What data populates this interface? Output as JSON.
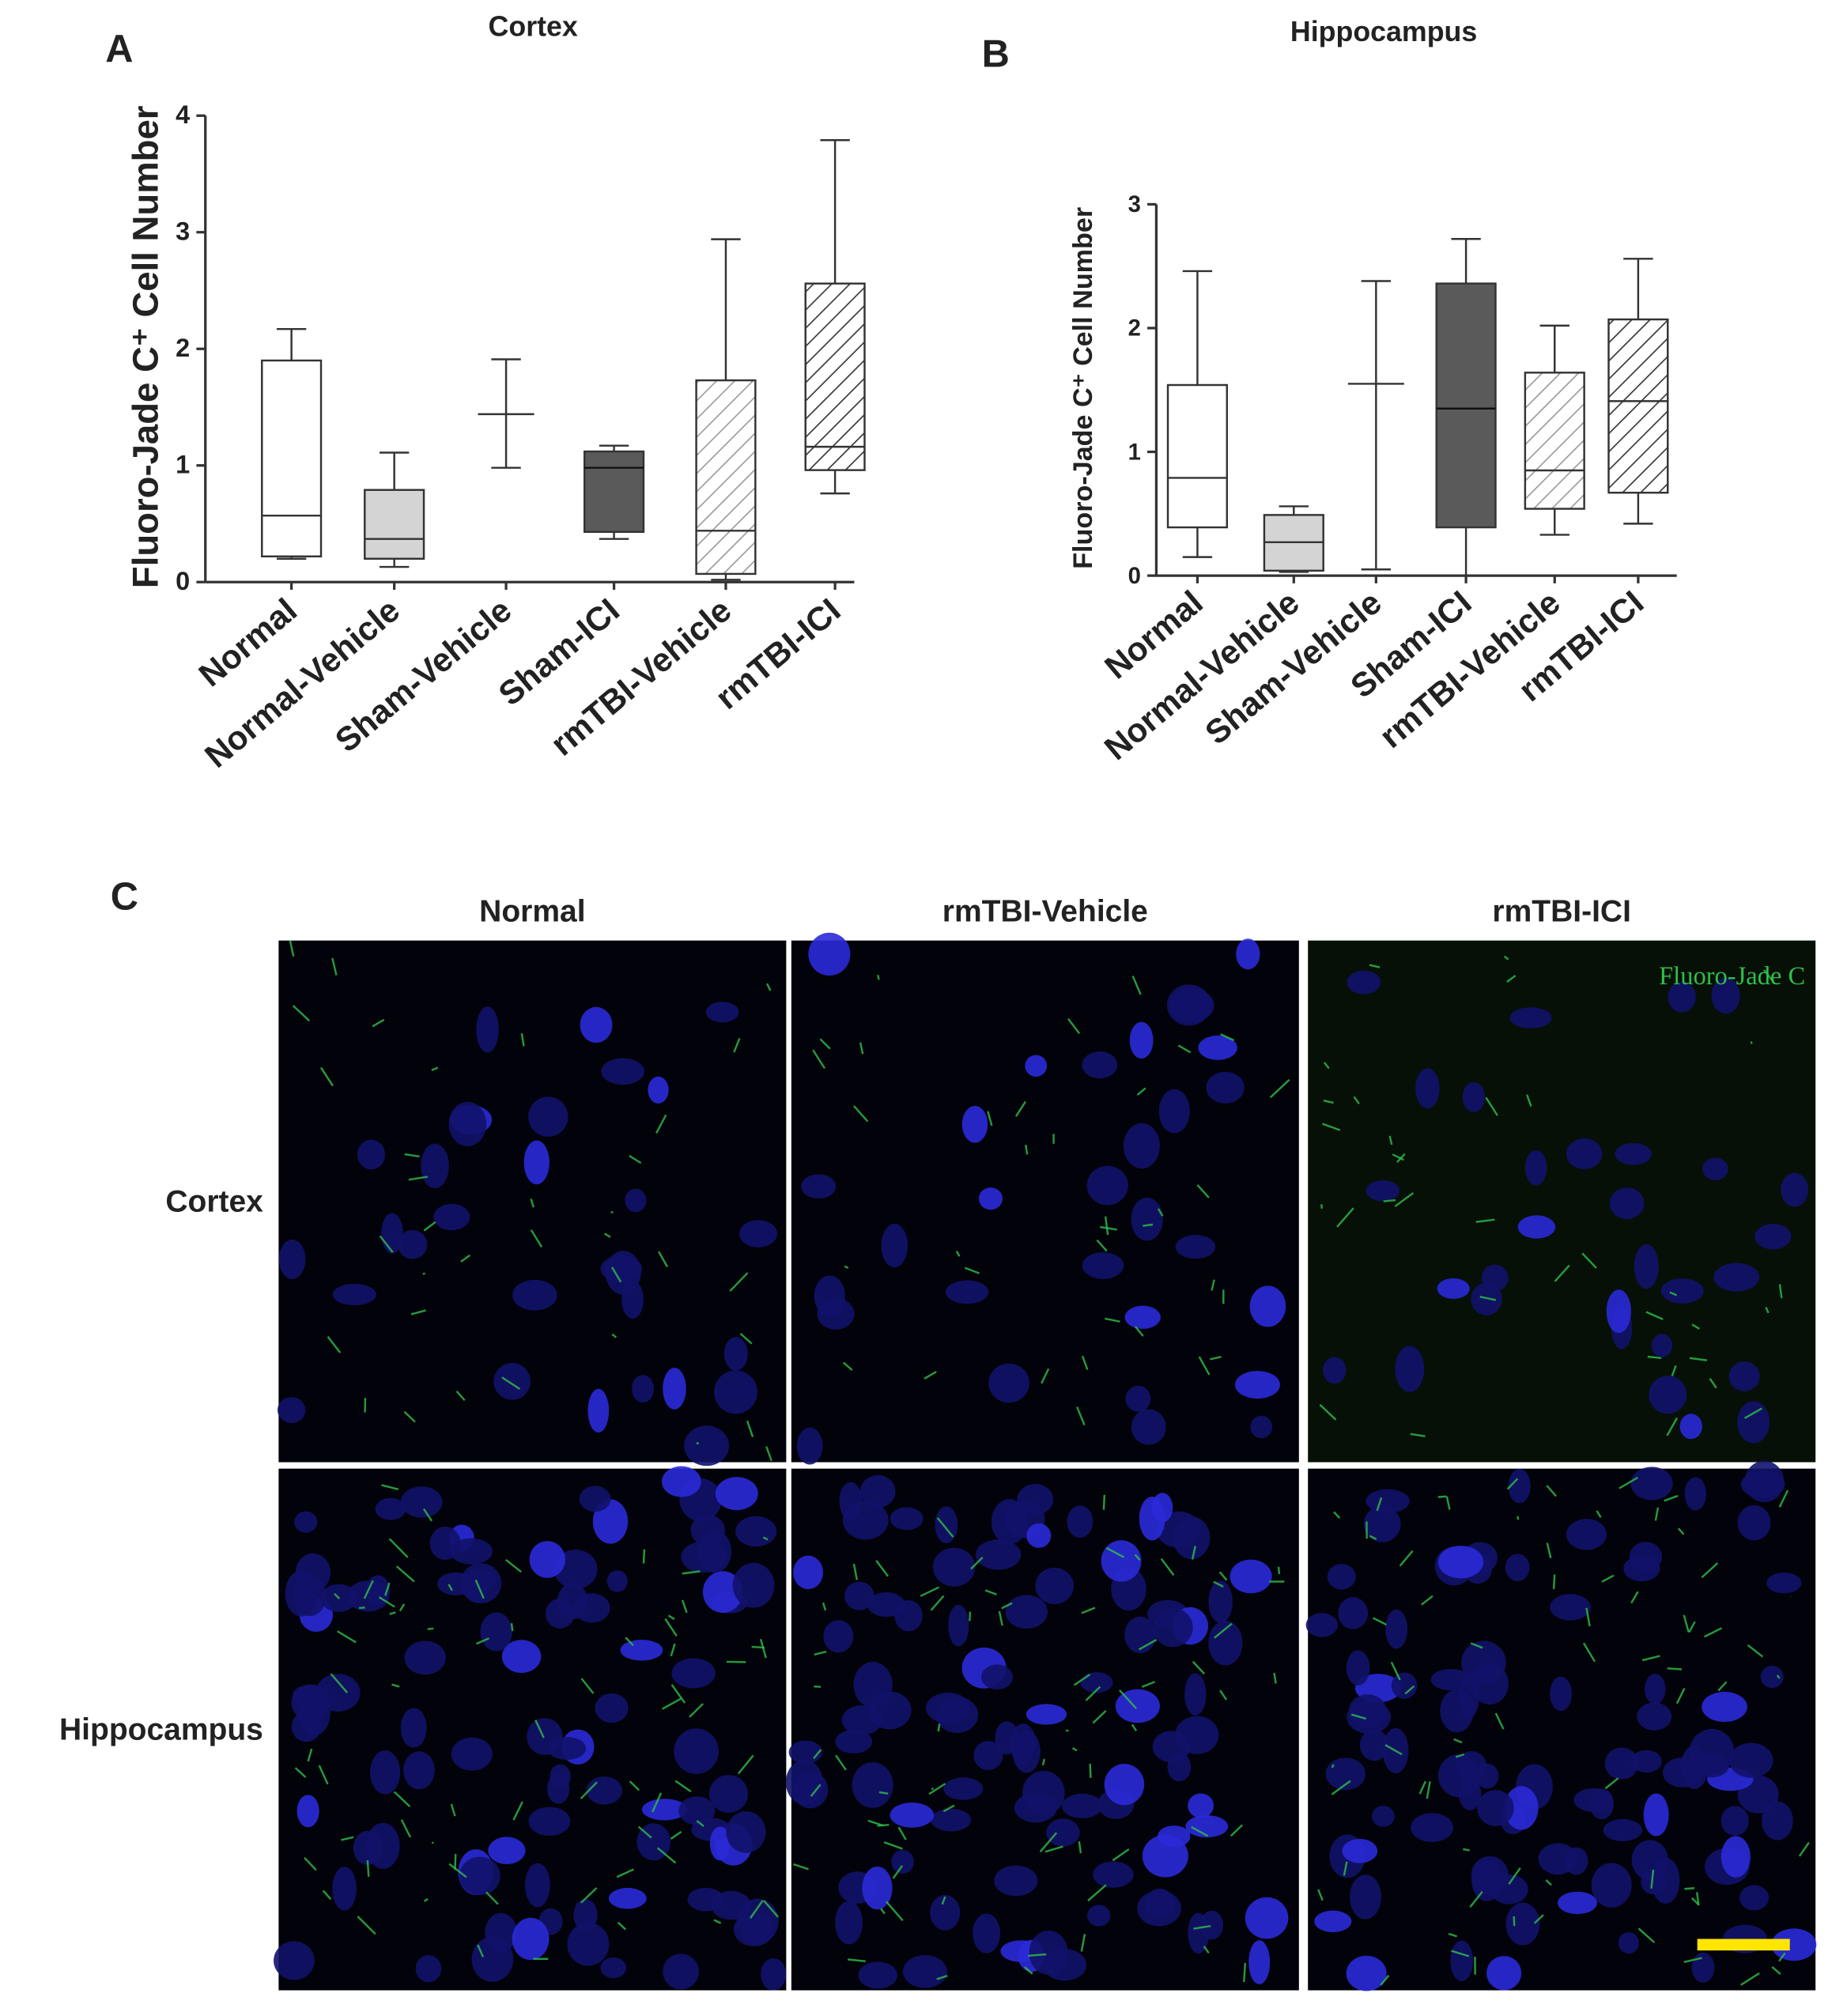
{
  "chart_data": [
    {
      "type": "box",
      "panel": "A",
      "title": "Cortex",
      "ylabel": "Fluoro-Jade C⁺ Cell Number",
      "categories": [
        "Normal",
        "Normal-Vehicle",
        "Sham-Vehicle",
        "Sham-ICI",
        "rmTBI-Vehicle",
        "rmTBI-ICI"
      ],
      "min": [
        0.2,
        0.13,
        0.98,
        0.37,
        0.02,
        0.76
      ],
      "q1": [
        0.22,
        0.2,
        null,
        0.43,
        0.07,
        0.96
      ],
      "median": [
        0.57,
        0.37,
        1.44,
        0.98,
        0.44,
        1.16
      ],
      "q3": [
        1.9,
        0.79,
        null,
        1.12,
        1.73,
        2.56
      ],
      "max": [
        2.17,
        1.11,
        1.91,
        1.17,
        2.94,
        3.79
      ],
      "fills": [
        "#ffffff",
        "#d4d4d4",
        "#ffffff",
        "#5a5a5a",
        "#ffffff",
        "#ffffff"
      ],
      "hatch": [
        null,
        null,
        null,
        null,
        "#9a9a9a",
        "#333333"
      ],
      "ylim": [
        0,
        4
      ],
      "yticks": [
        0,
        1,
        2,
        3,
        4
      ]
    },
    {
      "type": "box",
      "panel": "B",
      "title": "Hippocampus",
      "ylabel": "Fluoro-Jade C⁺ Cell Number",
      "categories": [
        "Normal",
        "Normal-Vehicle",
        "Sham-Vehicle",
        "Sham-ICI",
        "rmTBI-Vehicle",
        "rmTBI-ICI"
      ],
      "min": [
        0.15,
        0.03,
        0.05,
        0.0,
        0.33,
        0.42
      ],
      "q1": [
        0.39,
        0.04,
        null,
        0.39,
        0.54,
        0.67
      ],
      "median": [
        0.79,
        0.27,
        1.55,
        1.35,
        0.85,
        1.41
      ],
      "q3": [
        1.54,
        0.49,
        null,
        2.36,
        1.64,
        2.07
      ],
      "max": [
        2.46,
        0.56,
        2.38,
        2.72,
        2.02,
        2.56
      ],
      "fills": [
        "#ffffff",
        "#d4d4d4",
        "#ffffff",
        "#5a5a5a",
        "#ffffff",
        "#ffffff"
      ],
      "hatch": [
        null,
        null,
        null,
        null,
        "#9a9a9a",
        "#333333"
      ],
      "ylim": [
        0,
        3
      ],
      "yticks": [
        0,
        1,
        2,
        3
      ]
    }
  ],
  "panel_c": {
    "label": "C",
    "columns": [
      "Normal",
      "rmTBI-Vehicle",
      "rmTBI-ICI"
    ],
    "rows": [
      "Cortex",
      "Hippocampus"
    ],
    "stain": "Fluoro-Jade C"
  }
}
